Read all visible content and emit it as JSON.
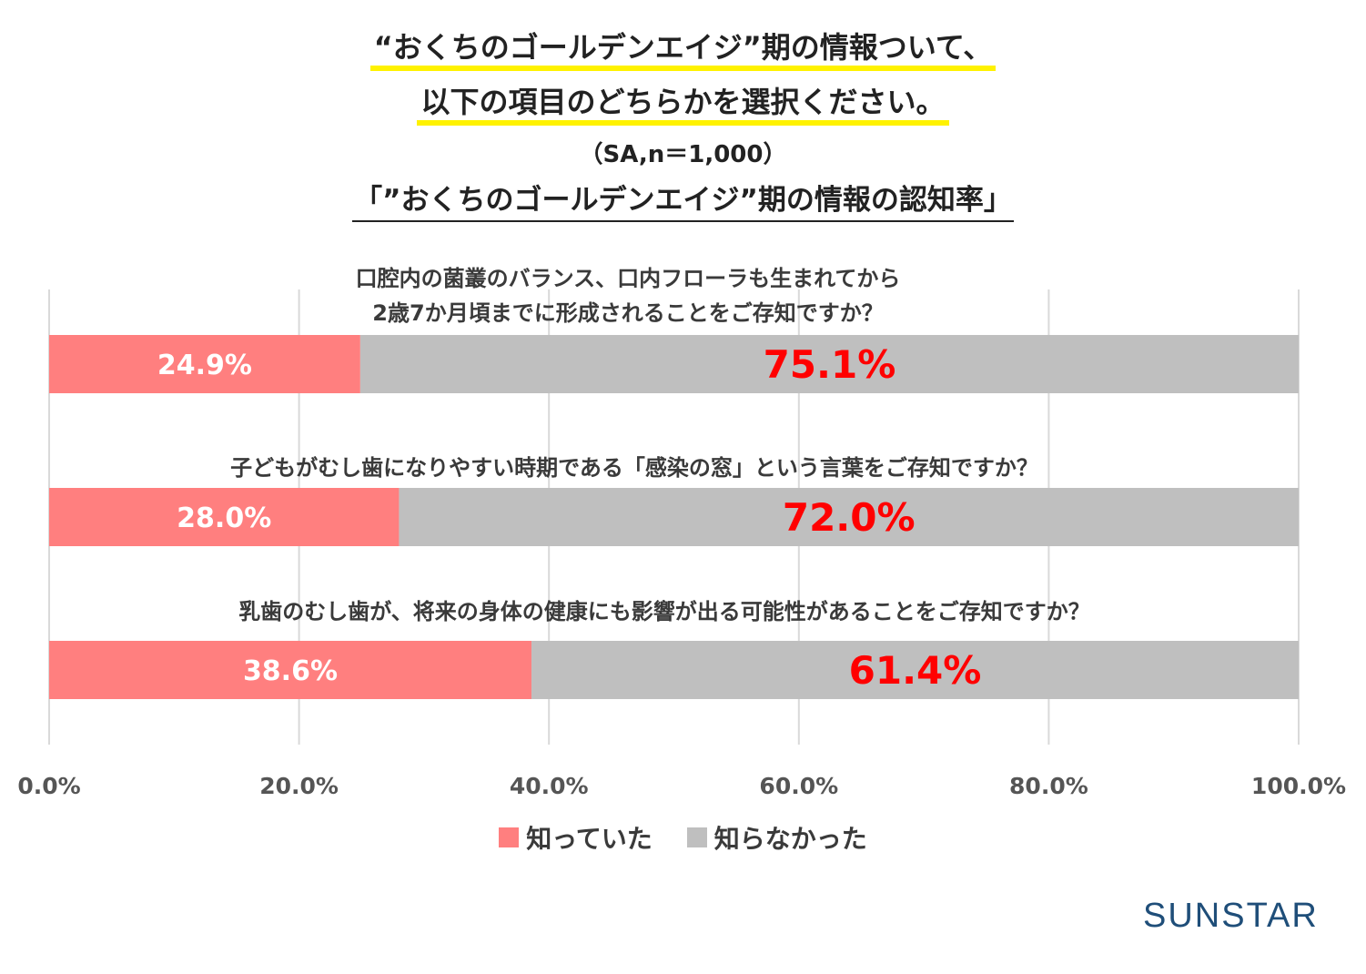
{
  "title": {
    "line1": "“おくちのゴールデンエイジ”期の情報ついて、",
    "line2": "以下の項目のどちらかを選択ください。",
    "sample": "（SA,n＝1,000）",
    "subtitle": "「”おくちのゴールデンエイジ”期の情報の認知率」"
  },
  "chart_data": {
    "type": "bar",
    "orientation": "horizontal-stacked-100",
    "categories": [
      "口腔内の菌叢のバランス、口内フローラも生まれてから 2歳7か月頃までに形成されることをご存知ですか？",
      "子どもがむし歯になりやすい時期である「感染の窓」という言葉をご存知ですか？",
      "乳歯のむし歯が、将来の身体の健康にも影響が出る可能性があることをご存知ですか？"
    ],
    "category_lines": [
      [
        "口腔内の菌叢のバランス、口内フローラも生まれてから",
        "2歳7か月頃までに形成されることをご存知ですか？"
      ],
      [
        "子どもがむし歯になりやすい時期である「感染の窓」という言葉をご存知ですか？"
      ],
      [
        "乳歯のむし歯が、将来の身体の健康にも影響が出る可能性があることをご存知ですか？"
      ]
    ],
    "series": [
      {
        "name": "知っていた",
        "values": [
          24.9,
          28.0,
          38.6
        ],
        "labels": [
          "24.9%",
          "28.0%",
          "38.6%"
        ],
        "color": "#ff7f7f"
      },
      {
        "name": "知らなかった",
        "values": [
          75.1,
          72.0,
          61.4
        ],
        "labels": [
          "75.1%",
          "72.0%",
          "61.4%"
        ],
        "color": "#bfbfbf"
      }
    ],
    "xlim": [
      0,
      100
    ],
    "xticks": [
      "0.0%",
      "20.0%",
      "40.0%",
      "60.0%",
      "80.0%",
      "100.0%"
    ],
    "grid": true,
    "legend_position": "bottom"
  },
  "logo": "SUNSTAR"
}
